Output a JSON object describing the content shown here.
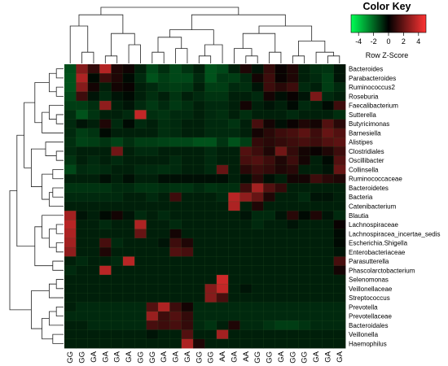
{
  "chart_data": {
    "type": "heatmap",
    "title": "",
    "color_key": {
      "title": "Color Key",
      "xlabel": "Row Z-Score",
      "ticks": [
        "-4",
        "-2",
        "0",
        "2",
        "4"
      ],
      "range": [
        -5,
        5
      ],
      "low_color": "#00ff55",
      "mid_color": "#000000",
      "high_color": "#ff3333"
    },
    "columns": [
      "GG",
      "GG",
      "GA",
      "GA",
      "GA",
      "GA",
      "GG",
      "GG",
      "GA",
      "GA",
      "GA",
      "GG",
      "GG",
      "AA",
      "GA",
      "AA",
      "GG",
      "GG",
      "GA",
      "GG",
      "GG",
      "GA",
      "GA",
      "GA"
    ],
    "rows": [
      "Bacteroides",
      "Parabacteroides",
      "Ruminococcus2",
      "Roseburia",
      "Faecalibacterium",
      "Sutterella",
      "Butyricimonas",
      "Barnesiella",
      "Alistipes",
      "Clostridiales",
      "Oscillibacter",
      "Collinsella",
      "Ruminococcaceae",
      "Bacteroidetes",
      "Bacteria",
      "Catenibacterium",
      "Blautia",
      "Lachnospiraceae",
      "Lachnospiracea_incertae_sedis",
      "Escherichia.Shigella",
      "Enterobacteriaceae",
      "Parasutterella",
      "Phascolarctobacterium",
      "Selenomonas",
      "Veillonellaceae",
      "Streptococcus",
      "Prevotella",
      "Prevotellaceae",
      "Bacteroidales",
      "Veillonella",
      "Haemophilus"
    ],
    "values": [
      [
        -1.5,
        2.6,
        1.0,
        3.5,
        0.6,
        0.3,
        -0.6,
        -1.4,
        -0.9,
        -1.4,
        -1.0,
        -0.6,
        -1.6,
        -1.4,
        -0.6,
        0.6,
        -0.4,
        1.0,
        0.2,
        0.6,
        -0.6,
        -0.9,
        -1.0,
        -0.4
      ],
      [
        -1.6,
        3.4,
        -0.2,
        1.2,
        0.6,
        -0.2,
        -0.8,
        -1.6,
        -1.2,
        -1.4,
        -1.4,
        -0.8,
        -1.6,
        -1.1,
        -1.2,
        -0.8,
        0.4,
        1.2,
        0.2,
        0.6,
        -0.6,
        -0.8,
        -1.2,
        -0.4
      ],
      [
        -1.6,
        2.6,
        0.4,
        -0.6,
        0.4,
        0.2,
        -0.6,
        -0.8,
        -1.1,
        -1.2,
        -1.1,
        -0.6,
        -1.2,
        -1.2,
        -0.8,
        -0.9,
        -0.4,
        1.2,
        0.8,
        1.2,
        -0.8,
        -0.6,
        -1.2,
        -0.8
      ],
      [
        -1.4,
        1.2,
        -0.4,
        -0.8,
        -0.4,
        -0.2,
        -0.6,
        -0.9,
        -0.6,
        -1.0,
        -0.6,
        -0.8,
        -1.0,
        -1.0,
        -0.6,
        -0.6,
        -0.8,
        0.4,
        -0.3,
        0.2,
        -0.4,
        2.4,
        -0.8,
        -0.6
      ],
      [
        -1.2,
        -1.2,
        -0.9,
        2.8,
        -0.6,
        -0.4,
        -0.8,
        -1.1,
        -0.8,
        -1.1,
        -0.9,
        -0.6,
        -0.8,
        -0.8,
        -0.6,
        0.4,
        -0.6,
        -0.4,
        -0.6,
        -0.2,
        -0.8,
        -0.6,
        -0.2,
        1.2
      ],
      [
        -0.9,
        -1.6,
        -1.0,
        -0.6,
        -0.6,
        -0.8,
        3.8,
        -0.9,
        -1.0,
        -0.8,
        -0.8,
        -0.6,
        -0.8,
        -0.9,
        -0.6,
        -0.9,
        -0.6,
        -0.6,
        -0.6,
        -0.8,
        -0.6,
        -0.6,
        -0.6,
        -0.9
      ],
      [
        -0.8,
        -0.4,
        -0.6,
        0.6,
        -0.8,
        -0.2,
        -0.8,
        -0.6,
        -0.9,
        -0.8,
        -0.6,
        -0.6,
        -0.8,
        -0.8,
        -1.0,
        -0.6,
        1.4,
        0.4,
        -0.3,
        0.2,
        0.6,
        0.4,
        1.6,
        0.8
      ],
      [
        -0.8,
        -1.2,
        -1.0,
        -0.2,
        -0.6,
        -0.6,
        -0.6,
        -0.6,
        -0.9,
        -0.8,
        -0.6,
        -0.6,
        -0.8,
        -0.8,
        -0.8,
        -0.6,
        0.4,
        0.8,
        1.2,
        1.4,
        1.8,
        1.2,
        2.0,
        1.6
      ],
      [
        -0.9,
        -1.3,
        -1.2,
        -1.0,
        -1.3,
        -0.9,
        -1.2,
        -1.2,
        -1.3,
        -1.4,
        -1.4,
        -1.6,
        -1.6,
        -1.0,
        -1.6,
        -1.2,
        1.0,
        0.8,
        1.0,
        1.2,
        1.4,
        1.2,
        1.6,
        1.8
      ],
      [
        -0.8,
        -0.6,
        -0.6,
        -0.6,
        2.2,
        -0.6,
        -0.8,
        -0.8,
        -0.6,
        -0.6,
        -0.6,
        -0.6,
        -0.8,
        -0.6,
        -0.6,
        1.6,
        1.2,
        0.6,
        2.2,
        1.0,
        0.4,
        0.2,
        0.6,
        1.2
      ],
      [
        -1.0,
        -0.6,
        -0.8,
        -0.6,
        -0.8,
        -0.6,
        -0.6,
        -0.6,
        -0.6,
        -0.8,
        -0.6,
        -0.6,
        -0.8,
        -0.6,
        -0.6,
        1.4,
        1.6,
        1.2,
        0.6,
        1.2,
        0.4,
        -0.6,
        -0.2,
        1.6
      ],
      [
        -1.4,
        -0.8,
        -0.9,
        -0.8,
        -0.6,
        -0.6,
        -0.8,
        -0.8,
        -0.9,
        -0.8,
        -0.6,
        -0.6,
        -0.8,
        2.0,
        -0.6,
        0.8,
        1.2,
        1.0,
        0.6,
        0.8,
        -0.6,
        -0.6,
        -0.4,
        2.0
      ],
      [
        -0.6,
        -0.6,
        -0.6,
        -0.3,
        -0.6,
        -0.3,
        -0.6,
        -0.6,
        -0.3,
        -0.3,
        -0.3,
        -0.3,
        -0.3,
        -0.3,
        -0.6,
        -0.3,
        0.8,
        -0.3,
        -0.6,
        0.4,
        0.4,
        1.2,
        0.8,
        0.6
      ],
      [
        -1.0,
        -1.0,
        -1.0,
        -1.0,
        -0.8,
        -0.8,
        -1.0,
        -1.0,
        -0.9,
        -1.0,
        -1.0,
        -0.8,
        -1.0,
        -0.9,
        -0.9,
        1.2,
        3.2,
        1.6,
        1.0,
        -0.6,
        -0.6,
        -0.6,
        -0.6,
        -0.6
      ],
      [
        -0.8,
        -0.8,
        -0.8,
        -0.8,
        -0.8,
        -0.6,
        -0.6,
        -0.8,
        -0.6,
        1.2,
        -0.6,
        -0.6,
        -0.6,
        -0.8,
        3.6,
        2.8,
        2.0,
        0.6,
        -0.6,
        -0.6,
        -0.8,
        -0.4,
        -0.4,
        -0.6
      ],
      [
        -0.6,
        -0.6,
        -0.6,
        -0.6,
        -0.6,
        -0.6,
        -0.6,
        -0.6,
        -0.6,
        -0.6,
        -0.6,
        -0.6,
        -0.6,
        -0.6,
        3.4,
        -0.6,
        0.6,
        -0.6,
        -0.6,
        -0.6,
        -0.6,
        -0.6,
        -0.6,
        -0.6
      ],
      [
        3.2,
        -0.4,
        -0.6,
        -0.2,
        0.4,
        -0.4,
        -0.8,
        -0.6,
        -0.8,
        -0.6,
        -0.6,
        -0.6,
        -0.6,
        -0.6,
        -0.6,
        -0.4,
        -0.8,
        -0.8,
        -0.4,
        0.8,
        -0.2,
        0.6,
        -0.4,
        -0.8
      ],
      [
        3.6,
        -0.6,
        -0.6,
        -0.8,
        -0.6,
        -0.6,
        3.4,
        -0.6,
        -0.6,
        -0.8,
        -0.6,
        -0.6,
        -0.6,
        -0.6,
        -0.6,
        -0.6,
        -0.8,
        -0.6,
        -0.6,
        -0.4,
        -0.6,
        -0.6,
        -0.6,
        0.2
      ],
      [
        3.4,
        -0.6,
        -0.6,
        -0.6,
        -0.6,
        -0.6,
        2.0,
        -0.6,
        -0.6,
        0.4,
        -0.6,
        -0.6,
        -0.6,
        -0.6,
        -0.6,
        -0.6,
        -0.6,
        -0.6,
        -0.6,
        -0.6,
        -0.6,
        -0.6,
        -0.6,
        -0.2
      ],
      [
        3.2,
        -0.6,
        -0.6,
        1.4,
        -0.8,
        -0.6,
        -0.6,
        -0.6,
        -0.4,
        1.2,
        0.6,
        -0.6,
        -0.6,
        -0.6,
        -0.6,
        -0.6,
        -0.6,
        -0.6,
        -0.6,
        -0.6,
        -0.6,
        -0.6,
        -0.6,
        -0.2
      ],
      [
        2.8,
        -0.6,
        -0.6,
        0.6,
        -0.6,
        -0.6,
        -0.6,
        -0.6,
        -0.6,
        1.6,
        1.4,
        -0.6,
        -0.6,
        -0.6,
        -0.6,
        -0.6,
        -0.6,
        -0.6,
        -0.6,
        -0.6,
        -0.6,
        -0.6,
        -0.6,
        -0.4
      ],
      [
        -0.6,
        -0.8,
        -0.6,
        -0.6,
        -0.8,
        3.6,
        -0.6,
        -0.6,
        -0.6,
        -0.6,
        -0.6,
        -0.6,
        -0.6,
        -0.6,
        -0.6,
        -0.6,
        -0.6,
        -0.6,
        -0.6,
        -0.6,
        -0.6,
        -0.6,
        -0.6,
        1.4
      ],
      [
        -0.8,
        -0.6,
        -0.6,
        3.6,
        -0.6,
        -0.6,
        -0.6,
        -0.6,
        -0.6,
        -0.6,
        -0.6,
        -0.6,
        -0.6,
        -0.6,
        -0.6,
        -0.6,
        -0.6,
        -0.6,
        -0.6,
        -0.6,
        -0.6,
        -0.6,
        -0.6,
        0.4
      ],
      [
        -0.6,
        -0.6,
        -0.6,
        -0.6,
        -0.6,
        -0.6,
        -0.6,
        -0.6,
        -0.6,
        -0.6,
        -0.6,
        -0.6,
        -0.6,
        4.0,
        -0.6,
        -0.6,
        -0.6,
        -0.6,
        -0.6,
        -0.6,
        -0.6,
        -0.6,
        -0.6,
        -0.6
      ],
      [
        -0.6,
        -0.6,
        -0.6,
        -0.6,
        -0.6,
        -0.6,
        -0.6,
        -0.6,
        -0.6,
        -0.6,
        -0.6,
        -0.6,
        2.6,
        3.8,
        -0.6,
        -0.4,
        -0.6,
        -0.6,
        -0.6,
        -0.6,
        -0.6,
        -0.6,
        -0.6,
        -0.6
      ],
      [
        -0.6,
        -0.6,
        -0.6,
        -0.6,
        -0.6,
        -0.6,
        -0.6,
        -0.6,
        -0.6,
        -0.6,
        -0.6,
        -0.6,
        2.6,
        1.4,
        -0.6,
        -0.6,
        -0.6,
        -0.6,
        -0.6,
        -0.6,
        -0.6,
        -0.6,
        -0.6,
        -0.6
      ],
      [
        -0.6,
        -0.8,
        -0.8,
        -0.8,
        -0.8,
        -0.8,
        -0.8,
        1.6,
        3.4,
        1.2,
        0.4,
        -0.8,
        -0.8,
        -0.8,
        -0.8,
        -0.8,
        -0.8,
        -0.8,
        -0.8,
        -0.8,
        -0.8,
        -0.8,
        -0.8,
        -0.8
      ],
      [
        -0.8,
        -0.8,
        -0.8,
        -0.8,
        -0.8,
        -0.8,
        -0.8,
        3.0,
        1.2,
        1.6,
        1.0,
        -0.8,
        -0.8,
        -0.8,
        -0.8,
        -0.8,
        -0.8,
        -0.8,
        -0.8,
        -0.8,
        -0.8,
        -0.8,
        -0.8,
        -0.8
      ],
      [
        -0.6,
        -0.6,
        -0.8,
        -0.8,
        -0.8,
        -0.8,
        -0.8,
        1.4,
        1.2,
        1.4,
        1.0,
        -0.8,
        -1.0,
        -0.6,
        0.6,
        -0.8,
        -0.8,
        -1.0,
        -1.2,
        -1.2,
        -1.0,
        -0.8,
        -0.8,
        -0.8
      ],
      [
        -0.6,
        -0.6,
        -0.6,
        -0.6,
        -0.6,
        -0.6,
        -0.6,
        -0.4,
        -0.6,
        -0.6,
        1.6,
        -0.6,
        -0.6,
        3.2,
        -0.6,
        -0.6,
        -0.6,
        -0.6,
        -0.6,
        -0.6,
        -0.6,
        -0.6,
        -0.6,
        -0.6
      ],
      [
        -0.6,
        -0.6,
        -0.6,
        -0.6,
        -0.6,
        -0.6,
        -0.6,
        -0.6,
        -0.6,
        -0.6,
        3.4,
        0.6,
        -0.6,
        -0.6,
        -0.6,
        -0.6,
        -0.6,
        -0.6,
        -0.6,
        -0.6,
        -0.6,
        -0.6,
        -0.6,
        -0.6
      ]
    ]
  }
}
